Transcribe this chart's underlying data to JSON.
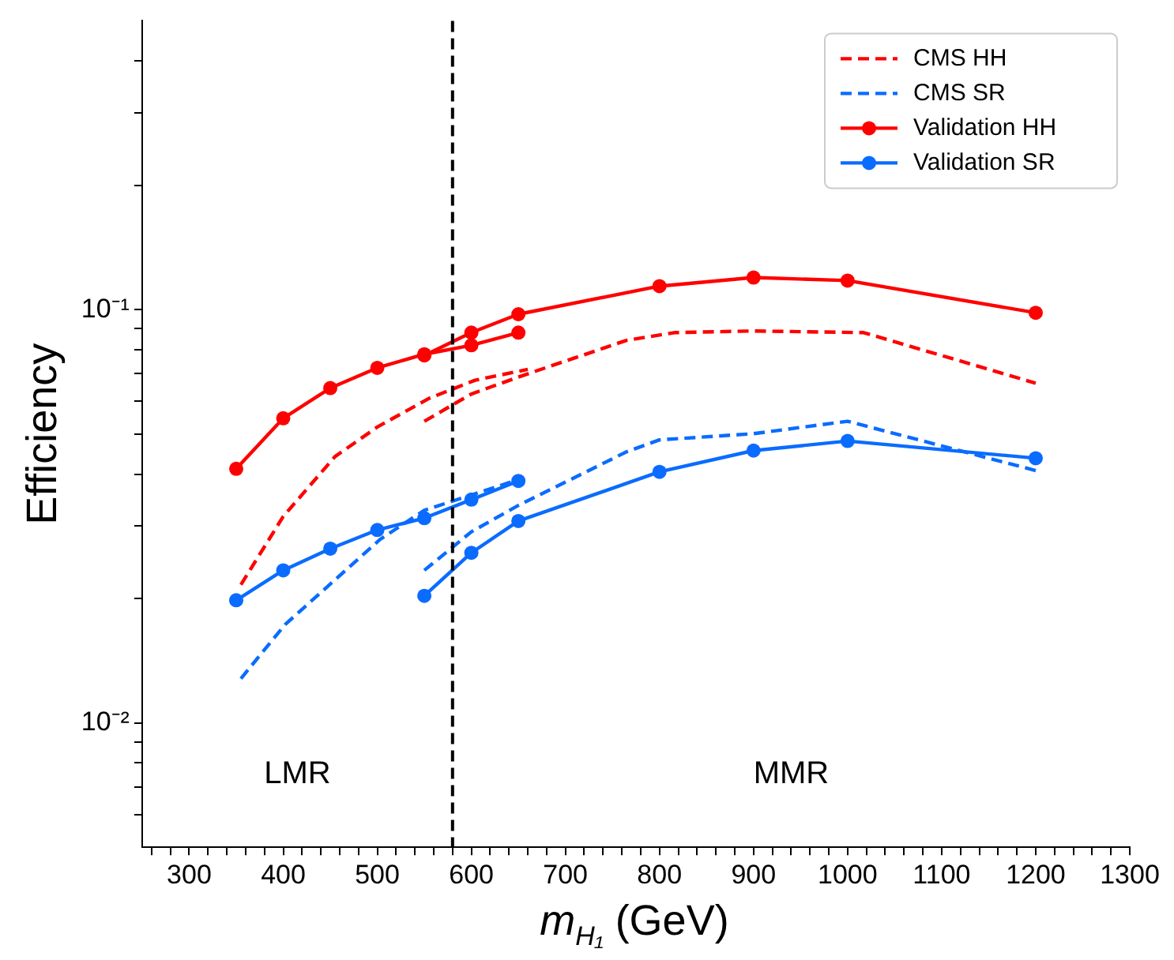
{
  "chart_data": {
    "type": "line",
    "xlabel": "m$_{H₁}$ (GeV)",
    "ylabel": "Efficiency",
    "log": "y",
    "grid": false,
    "legend": "top right",
    "xlim": [
      250,
      1300
    ],
    "xticks": [
      {
        "value": 260,
        "label": null
      },
      {
        "value": 280,
        "label": null
      },
      300,
      {
        "value": 320,
        "label": null
      },
      {
        "value": 340,
        "label": null
      },
      {
        "value": 360,
        "label": null
      },
      {
        "value": 380,
        "label": null
      },
      400,
      {
        "value": 420,
        "label": null
      },
      {
        "value": 440,
        "label": null
      },
      {
        "value": 460,
        "label": null
      },
      {
        "value": 480,
        "label": null
      },
      500,
      {
        "value": 520,
        "label": null
      },
      {
        "value": 540,
        "label": null
      },
      {
        "value": 560,
        "label": null
      },
      {
        "value": 580,
        "label": null
      },
      600,
      {
        "value": 620,
        "label": null
      },
      {
        "value": 640,
        "label": null
      },
      {
        "value": 660,
        "label": null
      },
      {
        "value": 680,
        "label": null
      },
      700,
      {
        "value": 720,
        "label": null
      },
      {
        "value": 740,
        "label": null
      },
      {
        "value": 760,
        "label": null
      },
      {
        "value": 780,
        "label": null
      },
      800,
      {
        "value": 820,
        "label": null
      },
      {
        "value": 840,
        "label": null
      },
      {
        "value": 860,
        "label": null
      },
      {
        "value": 880,
        "label": null
      },
      900,
      {
        "value": 920,
        "label": null
      },
      {
        "value": 940,
        "label": null
      },
      {
        "value": 960,
        "label": null
      },
      {
        "value": 980,
        "label": null
      },
      1000,
      {
        "value": 1020,
        "label": null
      },
      {
        "value": 1040,
        "label": null
      },
      {
        "value": 1060,
        "label": null
      },
      {
        "value": 1080,
        "label": null
      },
      1100,
      {
        "value": 1120,
        "label": null
      },
      {
        "value": 1140,
        "label": null
      },
      {
        "value": 1160,
        "label": null
      },
      {
        "value": 1180,
        "label": null
      },
      1200,
      {
        "value": 1220,
        "label": null
      },
      {
        "value": 1240,
        "label": null
      },
      {
        "value": 1260,
        "label": null
      },
      {
        "value": 1280,
        "label": null
      },
      1300
    ],
    "ylim": [
      0.005,
      0.5
    ],
    "yticks": [
      {
        "value": 0.006,
        "label": null
      },
      {
        "value": 0.007,
        "label": null
      },
      {
        "value": 0.008,
        "label": null
      },
      {
        "value": 0.009,
        "label": null
      },
      {
        "value": 0.01,
        "label": "10⁻²"
      },
      {
        "value": 0.02,
        "label": null
      },
      {
        "value": 0.03,
        "label": null
      },
      {
        "value": 0.04,
        "label": null
      },
      {
        "value": 0.05,
        "label": null
      },
      {
        "value": 0.06,
        "label": null
      },
      {
        "value": 0.07,
        "label": null
      },
      {
        "value": 0.08,
        "label": null
      },
      {
        "value": 0.09,
        "label": null
      },
      {
        "value": 0.1,
        "label": "10⁻¹"
      },
      {
        "value": 0.2,
        "label": null
      },
      {
        "value": 0.3,
        "label": null
      },
      {
        "value": 0.4,
        "label": null
      }
    ],
    "series": [
      {
        "name": "CMS HH",
        "color": "#ff0000",
        "marker": "none",
        "line_style": "dashed",
        "x": [
          355,
          400,
          455,
          500,
          555,
          604,
          660
        ],
        "values": [
          0.0216,
          0.0316,
          0.0441,
          0.052,
          0.061,
          0.0675,
          0.0717
        ]
      },
      {
        "name": "CMS SR",
        "color": "#0a6cff",
        "marker": "none",
        "line_style": "dashed",
        "x": [
          355,
          402,
          503,
          550,
          600,
          650
        ],
        "values": [
          0.0128,
          0.0173,
          0.0278,
          0.0327,
          0.0356,
          0.0388
        ]
      },
      {
        "name": "Validation HH",
        "color": "#ff0000",
        "marker": "circle",
        "line_style": "solid",
        "x": [
          350,
          400,
          450,
          500,
          550,
          600,
          650
        ],
        "values": [
          0.0412,
          0.0546,
          0.0646,
          0.0723,
          0.078,
          0.082,
          0.088
        ]
      },
      {
        "name": "Validation SR",
        "color": "#0a6cff",
        "marker": "circle",
        "line_style": "solid",
        "x": [
          350,
          400,
          450,
          500,
          550,
          600,
          650
        ],
        "values": [
          0.0198,
          0.0234,
          0.0264,
          0.0293,
          0.0313,
          0.0347,
          0.0385
        ]
      },
      {
        "color": "#ff0000",
        "marker": "none",
        "line_style": "dashed",
        "x": [
          550,
          600,
          650,
          765,
          816,
          900,
          1017,
          1200
        ],
        "values": [
          0.0537,
          0.0625,
          0.0687,
          0.0843,
          0.088,
          0.0888,
          0.088,
          0.0664
        ]
      },
      {
        "color": "#0a6cff",
        "marker": "none",
        "line_style": "dashed",
        "x": [
          550,
          600,
          650,
          765,
          800,
          900,
          1000,
          1200
        ],
        "values": [
          0.0234,
          0.029,
          0.0336,
          0.0453,
          0.0484,
          0.0501,
          0.0537,
          0.0408
        ]
      },
      {
        "color": "#ff0000",
        "marker": "circle",
        "line_style": "solid",
        "x": [
          550,
          600,
          650,
          800,
          900,
          1000,
          1200
        ],
        "values": [
          0.0775,
          0.088,
          0.0975,
          0.114,
          0.1196,
          0.1176,
          0.0983
        ]
      },
      {
        "color": "#0a6cff",
        "marker": "circle",
        "line_style": "solid",
        "x": [
          550,
          600,
          650,
          800,
          900,
          1000,
          1200
        ],
        "values": [
          0.0203,
          0.0258,
          0.0308,
          0.0405,
          0.0456,
          0.0481,
          0.0437
        ]
      }
    ],
    "ref_lines": [
      {
        "axis": "x",
        "value": 580,
        "color": "#000000",
        "line_style": "dashed"
      }
    ],
    "annotations": [
      "LMR",
      "MMR"
    ]
  }
}
